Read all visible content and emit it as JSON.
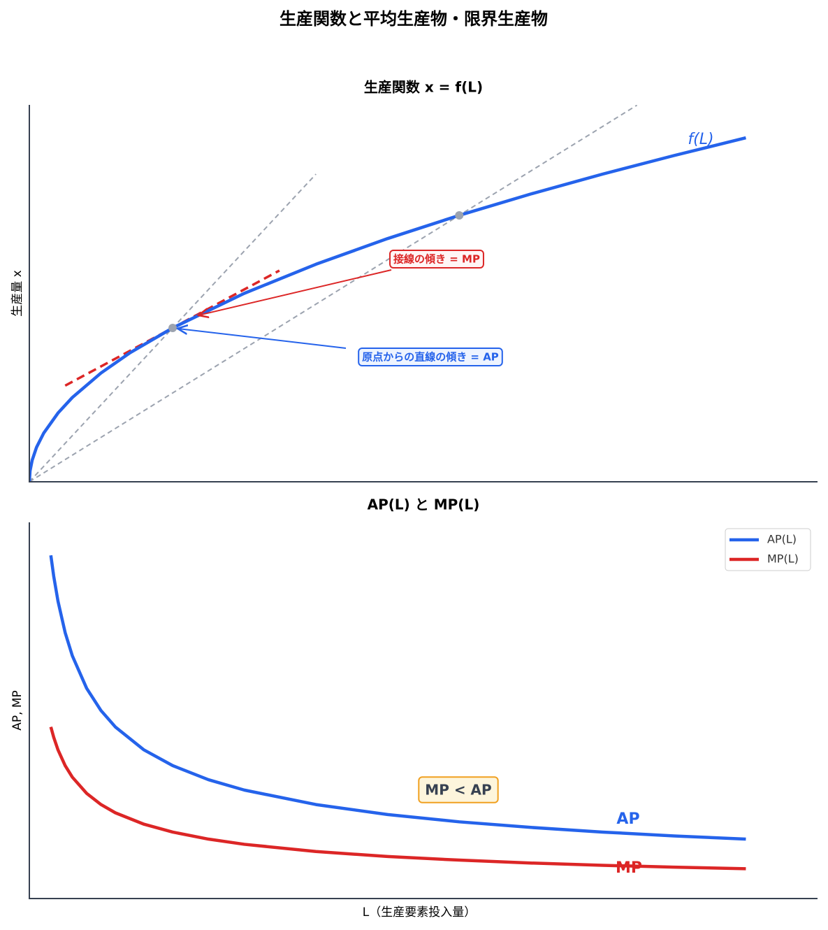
{
  "title": "生産関数と平均生産物・限界生産物",
  "chart_data": [
    {
      "type": "line",
      "title": "生産関数 x = f(L)",
      "y_label": "生産量 x",
      "x": [
        0,
        0.005,
        0.02,
        0.05,
        0.1,
        0.2,
        0.3,
        0.5,
        0.7,
        1,
        1.5,
        2,
        2.5,
        3,
        3.5,
        4,
        4.5,
        5
      ],
      "xlim": [
        0,
        5.5
      ],
      "ylim": [
        0,
        2.45
      ],
      "series": [
        {
          "name": "f(L)",
          "color": "#2563eb",
          "values": [
            0,
            0.071,
            0.141,
            0.224,
            0.316,
            0.447,
            0.548,
            0.707,
            0.837,
            1,
            1.225,
            1.414,
            1.581,
            1.732,
            1.871,
            2,
            2.121,
            2.236
          ]
        }
      ],
      "lines": [
        {
          "x": [
            0,
            2
          ],
          "values": [
            0,
            2
          ],
          "color": "#9ca3af"
        },
        {
          "x": [
            0,
            4.24
          ],
          "values": [
            0,
            2.448
          ],
          "color": "#9ca3af"
        },
        {
          "x": [
            0.25,
            1.745
          ],
          "values": [
            0.625,
            1.373
          ],
          "color": "#dc2626"
        }
      ],
      "points": {
        "x": [
          1,
          3
        ],
        "values": [
          1,
          1.732
        ],
        "color": "#9ca3af"
      },
      "annotations": [
        {
          "text": "接線の傾き = MP",
          "x": 1.17,
          "y": 1.08,
          "color": "#dc2626"
        },
        {
          "text": "原点からの直線の傾き = AP",
          "x": 1,
          "y": 1,
          "color": "#2563eb"
        }
      ]
    },
    {
      "type": "line",
      "title": "AP(L) と MP(L)",
      "x_label": "L（生産要素投入量）",
      "y_label": "AP, MP",
      "x": [
        0.15,
        0.17,
        0.2,
        0.25,
        0.3,
        0.4,
        0.5,
        0.6,
        0.8,
        1,
        1.25,
        1.5,
        2,
        2.5,
        3,
        3.5,
        4,
        4.5,
        5
      ],
      "xlim": [
        0,
        5.5
      ],
      "ylim": [
        0,
        2.83
      ],
      "legend": "upper right",
      "series": [
        {
          "name": "AP(L)",
          "color": "#2563eb",
          "values": [
            2.582,
            2.425,
            2.236,
            2,
            1.826,
            1.581,
            1.414,
            1.291,
            1.118,
            1,
            0.894,
            0.816,
            0.707,
            0.632,
            0.577,
            0.535,
            0.5,
            0.471,
            0.447
          ]
        },
        {
          "name": "MP(L)",
          "color": "#dc2626",
          "values": [
            1.291,
            1.213,
            1.118,
            1,
            0.913,
            0.791,
            0.707,
            0.645,
            0.559,
            0.5,
            0.447,
            0.408,
            0.354,
            0.316,
            0.289,
            0.267,
            0.25,
            0.236,
            0.224
          ]
        }
      ],
      "annotations": [
        {
          "text": "AP",
          "color": "#2563eb"
        },
        {
          "text": "MP",
          "color": "#dc2626"
        },
        {
          "text": "MP < AP",
          "color": "#374151"
        }
      ]
    }
  ]
}
